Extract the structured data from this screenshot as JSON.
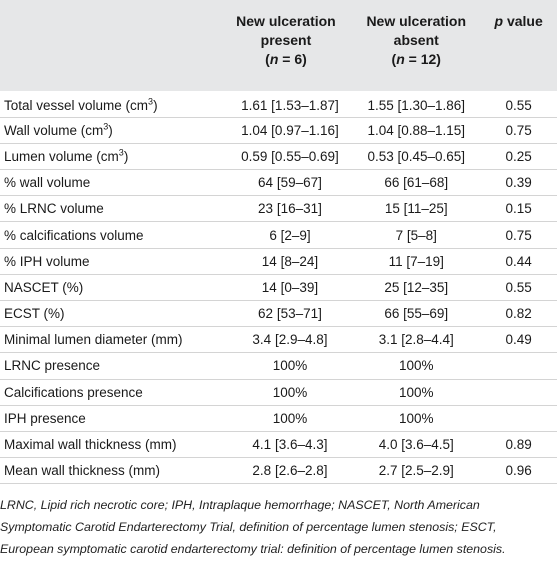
{
  "table": {
    "headers": [
      {
        "lines": [
          "",
          "",
          ""
        ]
      },
      {
        "lines": [
          "New ulceration",
          "present",
          "(n = 6)"
        ]
      },
      {
        "lines": [
          "New ulceration",
          "absent",
          "(n = 12)"
        ]
      },
      {
        "lines": [
          "p value"
        ]
      }
    ],
    "rows": [
      {
        "label": "Total vessel volume (cm",
        "sup": "3",
        "label_end": ")",
        "present": "1.61 [1.53–1.87]",
        "absent": "1.55 [1.30–1.86]",
        "p": "0.55"
      },
      {
        "label": "Wall volume (cm",
        "sup": "3",
        "label_end": ")",
        "present": "1.04 [0.97–1.16]",
        "absent": "1.04 [0.88–1.15]",
        "p": "0.75"
      },
      {
        "label": "Lumen volume (cm",
        "sup": "3",
        "label_end": ")",
        "present": "0.59 [0.55–0.69]",
        "absent": "0.53 [0.45–0.65]",
        "p": "0.25"
      },
      {
        "label": "% wall volume",
        "sup": "",
        "label_end": "",
        "present": "64 [59–67]",
        "absent": "66 [61–68]",
        "p": "0.39"
      },
      {
        "label": "% LRNC volume",
        "sup": "",
        "label_end": "",
        "present": "23 [16–31]",
        "absent": "15 [11–25]",
        "p": "0.15"
      },
      {
        "label": "% calcifications volume",
        "sup": "",
        "label_end": "",
        "present": "6 [2–9]",
        "absent": "7 [5–8]",
        "p": "0.75"
      },
      {
        "label": "% IPH volume",
        "sup": "",
        "label_end": "",
        "present": "14 [8–24]",
        "absent": "11 [7–19]",
        "p": "0.44"
      },
      {
        "label": "NASCET (%)",
        "sup": "",
        "label_end": "",
        "present": "14 [0–39]",
        "absent": "25 [12–35]",
        "p": "0.55"
      },
      {
        "label": "ECST (%)",
        "sup": "",
        "label_end": "",
        "present": "62 [53–71]",
        "absent": "66 [55–69]",
        "p": "0.82"
      },
      {
        "label": "Minimal lumen diameter (mm)",
        "sup": "",
        "label_end": "",
        "present": "3.4 [2.9–4.8]",
        "absent": "3.1 [2.8–4.4]",
        "p": "0.49"
      },
      {
        "label": "LRNC presence",
        "sup": "",
        "label_end": "",
        "present": "100%",
        "absent": "100%",
        "p": ""
      },
      {
        "label": "Calcifications presence",
        "sup": "",
        "label_end": "",
        "present": "100%",
        "absent": "100%",
        "p": ""
      },
      {
        "label": "IPH presence",
        "sup": "",
        "label_end": "",
        "present": "100%",
        "absent": "100%",
        "p": ""
      },
      {
        "label": "Maximal wall thickness (mm)",
        "sup": "",
        "label_end": "",
        "present": "4.1 [3.6–4.3]",
        "absent": "4.0 [3.6–4.5]",
        "p": "0.89"
      },
      {
        "label": "Mean wall thickness (mm)",
        "sup": "",
        "label_end": "",
        "present": "2.8 [2.6–2.8]",
        "absent": "2.7 [2.5–2.9]",
        "p": "0.96"
      }
    ]
  },
  "footnote": {
    "text": "LRNC, Lipid rich necrotic core; IPH, Intraplaque hemorrhage; NASCET, North American Symptomatic Carotid Endarterectomy Trial, definition of percentage lumen stenosis; ESCT, European symptomatic carotid endarterectomy trial: definition of percentage lumen stenosis."
  },
  "colors": {
    "header_bg": "#e6e7e8",
    "rule": "#d4d4d4",
    "text": "#1a1a1a"
  }
}
